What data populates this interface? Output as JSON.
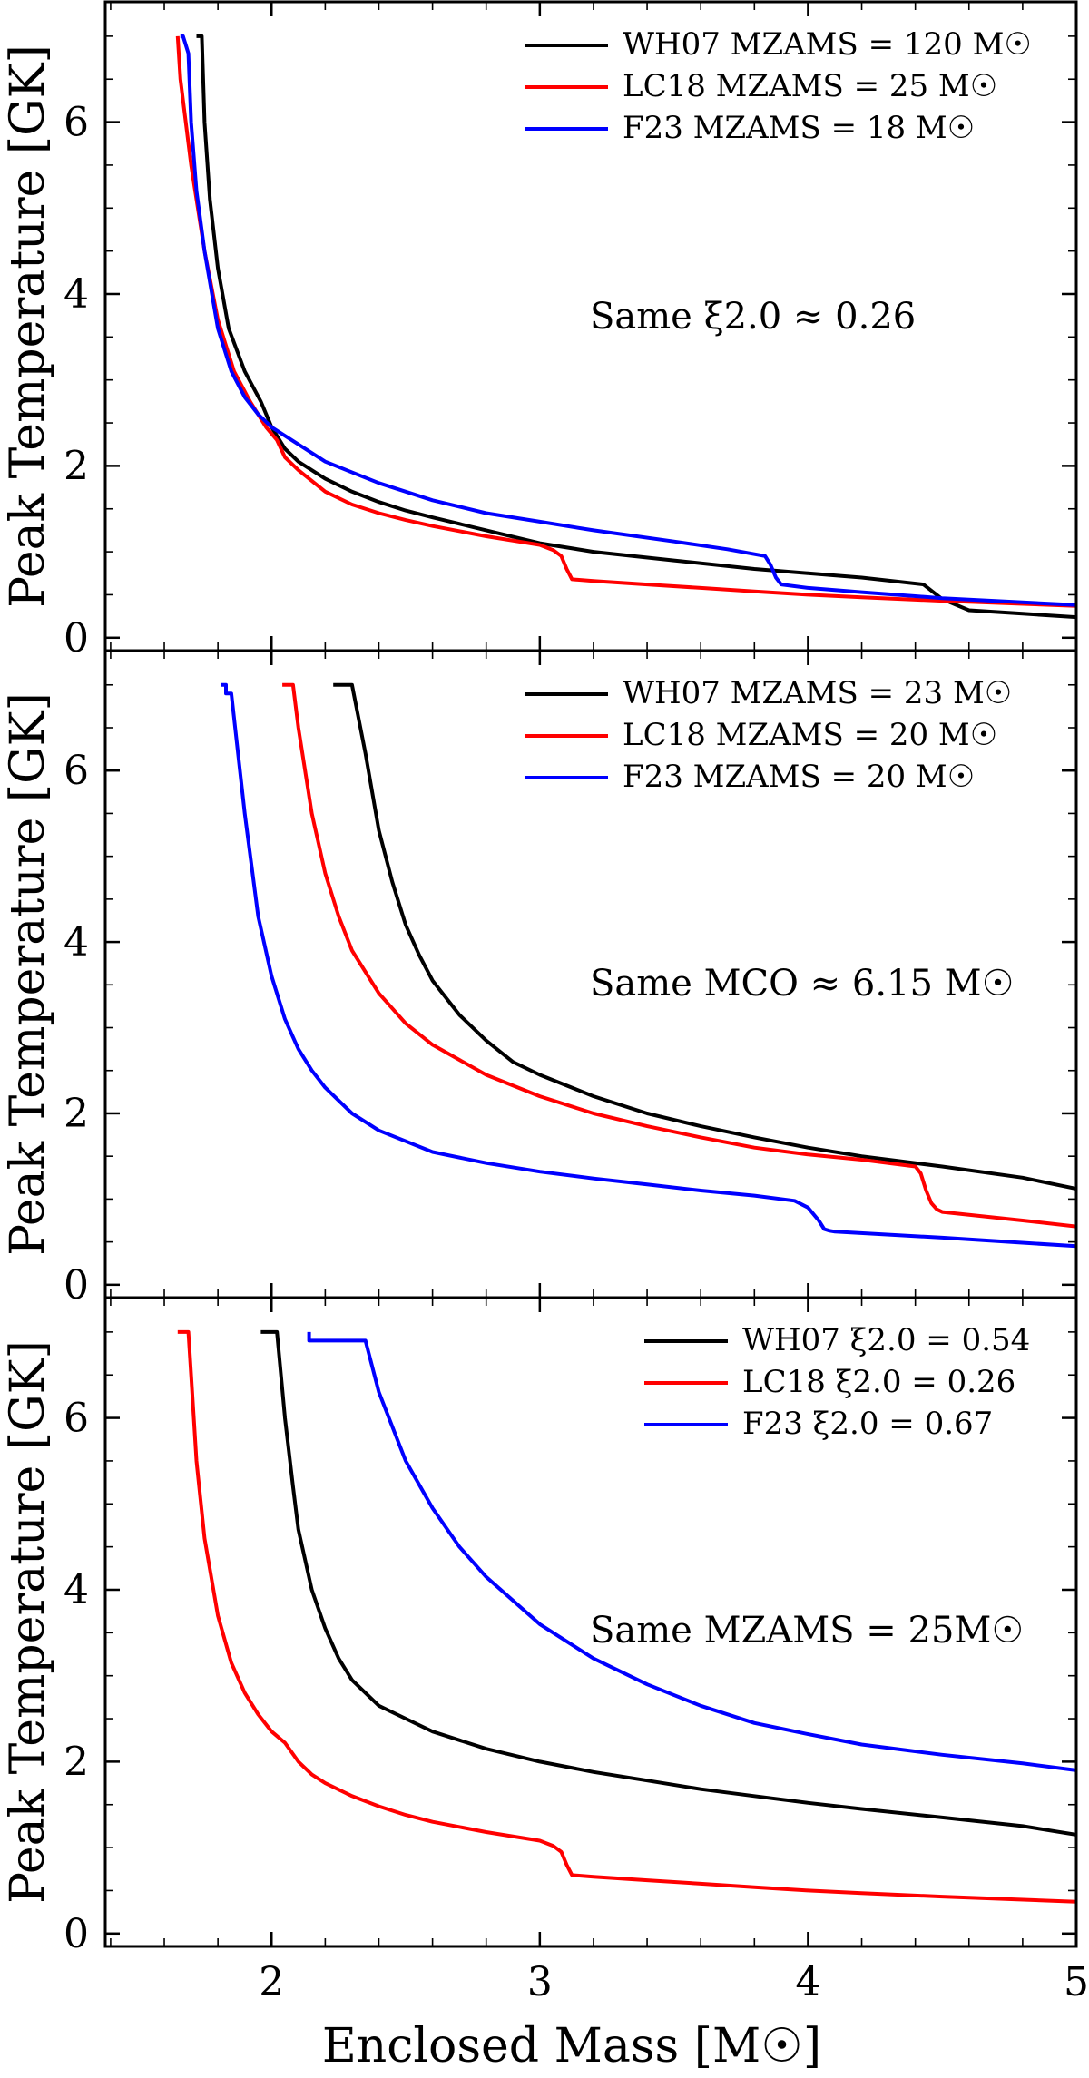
{
  "chart_data": [
    {
      "type": "line",
      "panel": "top",
      "annotation": "Same ξ2.0 ≈ 0.26",
      "xlabel": "Enclosed Mass [M☉]",
      "ylabel": "Peak Temperature [GK]",
      "xlim": [
        1.38,
        5.0
      ],
      "ylim": [
        -0.15,
        7.4
      ],
      "xticks": [
        "2",
        "3",
        "4",
        "5"
      ],
      "yticks": [
        "0",
        "2",
        "4",
        "6"
      ],
      "legend_position": "top-right",
      "series": [
        {
          "name": "WH07 MZAMS = 120 M☉",
          "color": "#000000",
          "x": [
            1.72,
            1.72,
            1.73,
            1.74,
            1.75,
            1.77,
            1.8,
            1.84,
            1.9,
            1.96,
            2.0,
            2.05,
            2.1,
            2.2,
            2.3,
            2.4,
            2.5,
            2.6,
            2.8,
            3.0,
            3.2,
            3.5,
            3.8,
            4.0,
            4.2,
            4.43,
            4.5,
            4.6,
            4.8,
            5.0
          ],
          "y": [
            7.0,
            7.0,
            7.0,
            7.0,
            6.0,
            5.1,
            4.3,
            3.6,
            3.1,
            2.75,
            2.45,
            2.2,
            2.05,
            1.85,
            1.7,
            1.58,
            1.48,
            1.4,
            1.25,
            1.1,
            1.0,
            0.9,
            0.8,
            0.75,
            0.7,
            0.62,
            0.45,
            0.32,
            0.28,
            0.24
          ]
        },
        {
          "name": "LC18 MZAMS = 25 M☉",
          "color": "#ff0000",
          "x": [
            1.65,
            1.66,
            1.7,
            1.75,
            1.8,
            1.86,
            1.92,
            1.98,
            2.02,
            2.05,
            2.1,
            2.2,
            2.3,
            2.4,
            2.5,
            2.6,
            2.8,
            3.0,
            3.05,
            3.08,
            3.1,
            3.12,
            3.2,
            3.4,
            3.6,
            3.8,
            4.0,
            4.2,
            4.5,
            5.0
          ],
          "y": [
            7.0,
            6.5,
            5.5,
            4.5,
            3.7,
            3.1,
            2.75,
            2.45,
            2.3,
            2.1,
            1.95,
            1.7,
            1.55,
            1.45,
            1.37,
            1.3,
            1.18,
            1.08,
            1.02,
            0.95,
            0.8,
            0.68,
            0.66,
            0.62,
            0.58,
            0.54,
            0.5,
            0.47,
            0.43,
            0.37
          ]
        },
        {
          "name": "F23 MZAMS = 18 M☉",
          "color": "#0000ff",
          "x": [
            1.66,
            1.67,
            1.68,
            1.68,
            1.69,
            1.7,
            1.72,
            1.75,
            1.8,
            1.85,
            1.9,
            1.95,
            2.0,
            2.1,
            2.2,
            2.4,
            2.6,
            2.8,
            3.0,
            3.2,
            3.5,
            3.7,
            3.84,
            3.86,
            3.88,
            3.9,
            4.0,
            4.2,
            4.5,
            5.0
          ],
          "y": [
            7.0,
            7.0,
            6.9,
            6.9,
            6.8,
            6.0,
            5.2,
            4.5,
            3.6,
            3.1,
            2.8,
            2.6,
            2.45,
            2.25,
            2.05,
            1.8,
            1.6,
            1.45,
            1.35,
            1.25,
            1.12,
            1.03,
            0.95,
            0.85,
            0.7,
            0.62,
            0.58,
            0.53,
            0.46,
            0.38
          ]
        }
      ]
    },
    {
      "type": "line",
      "panel": "middle",
      "annotation": "Same MCO ≈ 6.15 M☉",
      "xlabel": "Enclosed Mass [M☉]",
      "ylabel": "Peak Temperature [GK]",
      "xlim": [
        1.38,
        5.0
      ],
      "ylim": [
        -0.15,
        7.4
      ],
      "xticks": [
        "2",
        "3",
        "4",
        "5"
      ],
      "yticks": [
        "0",
        "2",
        "4",
        "6"
      ],
      "legend_position": "top-right",
      "series": [
        {
          "name": "WH07 MZAMS = 23 M☉",
          "color": "#000000",
          "x": [
            2.23,
            2.23,
            2.3,
            2.35,
            2.4,
            2.45,
            2.5,
            2.55,
            2.6,
            2.7,
            2.8,
            2.9,
            3.0,
            3.2,
            3.4,
            3.6,
            3.8,
            4.0,
            4.2,
            4.5,
            4.8,
            5.0
          ],
          "y": [
            7.0,
            7.0,
            7.0,
            6.2,
            5.3,
            4.7,
            4.2,
            3.85,
            3.55,
            3.15,
            2.85,
            2.6,
            2.45,
            2.2,
            2.0,
            1.85,
            1.72,
            1.6,
            1.5,
            1.38,
            1.25,
            1.12
          ]
        },
        {
          "name": "LC18 MZAMS = 20 M☉",
          "color": "#ff0000",
          "x": [
            2.04,
            2.04,
            2.08,
            2.1,
            2.15,
            2.2,
            2.25,
            2.3,
            2.4,
            2.5,
            2.6,
            2.8,
            3.0,
            3.2,
            3.4,
            3.6,
            3.8,
            4.0,
            4.2,
            4.4,
            4.42,
            4.44,
            4.46,
            4.48,
            4.5,
            4.8,
            5.0
          ],
          "y": [
            7.0,
            7.0,
            7.0,
            6.5,
            5.5,
            4.8,
            4.3,
            3.9,
            3.4,
            3.05,
            2.8,
            2.45,
            2.2,
            2.0,
            1.85,
            1.72,
            1.6,
            1.52,
            1.46,
            1.38,
            1.3,
            1.1,
            0.95,
            0.88,
            0.85,
            0.75,
            0.68
          ]
        },
        {
          "name": "F23 MZAMS = 20 M☉",
          "color": "#0000ff",
          "x": [
            1.81,
            1.81,
            1.83,
            1.83,
            1.85,
            1.85,
            1.9,
            1.95,
            2.0,
            2.05,
            2.1,
            2.15,
            2.2,
            2.3,
            2.4,
            2.6,
            2.8,
            3.0,
            3.2,
            3.4,
            3.6,
            3.8,
            3.95,
            4.0,
            4.04,
            4.06,
            4.08,
            4.1,
            4.5,
            5.0
          ],
          "y": [
            7.0,
            7.0,
            7.0,
            6.9,
            6.9,
            6.9,
            5.5,
            4.3,
            3.6,
            3.1,
            2.75,
            2.5,
            2.3,
            2.0,
            1.8,
            1.55,
            1.42,
            1.32,
            1.24,
            1.17,
            1.1,
            1.04,
            0.98,
            0.9,
            0.75,
            0.65,
            0.63,
            0.62,
            0.55,
            0.45
          ]
        }
      ]
    },
    {
      "type": "line",
      "panel": "bottom",
      "annotation": "Same MZAMS = 25M☉",
      "xlabel": "Enclosed Mass [M☉]",
      "ylabel": "Peak Temperature [GK]",
      "xlim": [
        1.38,
        5.0
      ],
      "ylim": [
        -0.15,
        7.4
      ],
      "xticks": [
        "2",
        "3",
        "4",
        "5"
      ],
      "yticks": [
        "0",
        "2",
        "4",
        "6"
      ],
      "legend_position": "top-right",
      "series": [
        {
          "name": "WH07 ξ2.0 = 0.54",
          "color": "#000000",
          "x": [
            1.96,
            1.96,
            2.02,
            2.05,
            2.08,
            2.1,
            2.15,
            2.2,
            2.25,
            2.3,
            2.4,
            2.5,
            2.6,
            2.8,
            3.0,
            3.2,
            3.4,
            3.6,
            3.8,
            4.0,
            4.2,
            4.5,
            4.8,
            5.0
          ],
          "y": [
            7.0,
            7.0,
            7.0,
            6.0,
            5.2,
            4.7,
            4.0,
            3.55,
            3.2,
            2.95,
            2.65,
            2.5,
            2.35,
            2.15,
            2.0,
            1.88,
            1.78,
            1.68,
            1.6,
            1.52,
            1.45,
            1.35,
            1.25,
            1.15
          ]
        },
        {
          "name": "LC18 ξ2.0 = 0.26",
          "color": "#ff0000",
          "x": [
            1.65,
            1.69,
            1.7,
            1.72,
            1.75,
            1.8,
            1.85,
            1.9,
            1.95,
            2.0,
            2.05,
            2.1,
            2.15,
            2.2,
            2.3,
            2.4,
            2.5,
            2.6,
            2.8,
            3.0,
            3.05,
            3.08,
            3.1,
            3.12,
            3.2,
            3.4,
            3.6,
            3.8,
            4.0,
            4.2,
            4.5,
            5.0
          ],
          "y": [
            7.0,
            7.0,
            6.5,
            5.5,
            4.6,
            3.7,
            3.15,
            2.8,
            2.55,
            2.35,
            2.22,
            2.0,
            1.85,
            1.75,
            1.6,
            1.48,
            1.38,
            1.3,
            1.18,
            1.08,
            1.02,
            0.95,
            0.8,
            0.68,
            0.66,
            0.62,
            0.58,
            0.54,
            0.5,
            0.47,
            0.43,
            0.37
          ]
        },
        {
          "name": "F23 ξ2.0 = 0.67",
          "color": "#0000ff",
          "x": [
            2.14,
            2.14,
            2.15,
            2.2,
            2.25,
            2.3,
            2.35,
            2.4,
            2.5,
            2.6,
            2.7,
            2.8,
            3.0,
            3.2,
            3.4,
            3.6,
            3.8,
            4.0,
            4.2,
            4.5,
            4.8,
            5.0
          ],
          "y": [
            7.0,
            6.9,
            6.9,
            6.9,
            6.9,
            6.9,
            6.9,
            6.3,
            5.5,
            4.95,
            4.5,
            4.15,
            3.6,
            3.2,
            2.9,
            2.65,
            2.45,
            2.32,
            2.2,
            2.08,
            1.98,
            1.9
          ]
        }
      ]
    }
  ]
}
